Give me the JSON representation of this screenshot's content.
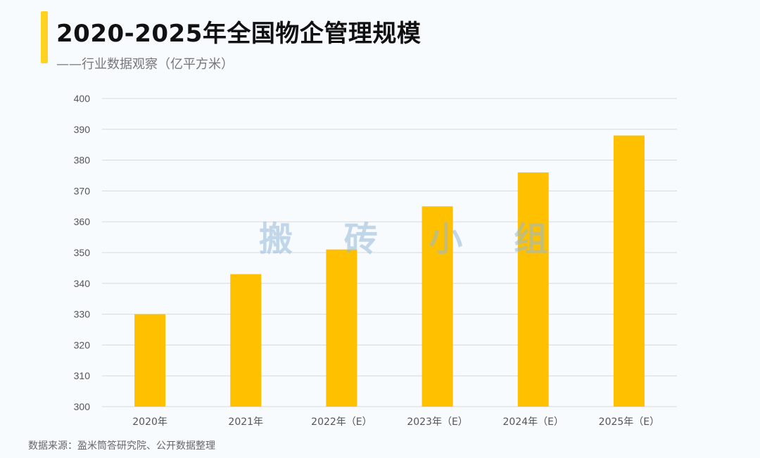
{
  "header": {
    "title": "2020-2025年全国物企管理规模",
    "subtitle": "——行业数据观察（亿平方米）"
  },
  "watermark": "搬 砖 小 组",
  "footer": {
    "source": "数据来源：盈米筒答研究院、公开数据整理"
  },
  "colors": {
    "accent": "#FFD21F",
    "bar": "#FFC000",
    "grid": "#d9d9d9",
    "tick_text": "#555555"
  },
  "chart_data": {
    "type": "bar",
    "categories": [
      "2020年",
      "2021年",
      "2022年（E）",
      "2023年（E）",
      "2024年（E）",
      "2025年（E）"
    ],
    "values": [
      330,
      343,
      351,
      365,
      376,
      388
    ],
    "ylim": [
      300,
      400
    ],
    "yticks": [
      300,
      310,
      320,
      330,
      340,
      350,
      360,
      370,
      380,
      390,
      400
    ],
    "grid": true,
    "legend": "none"
  }
}
